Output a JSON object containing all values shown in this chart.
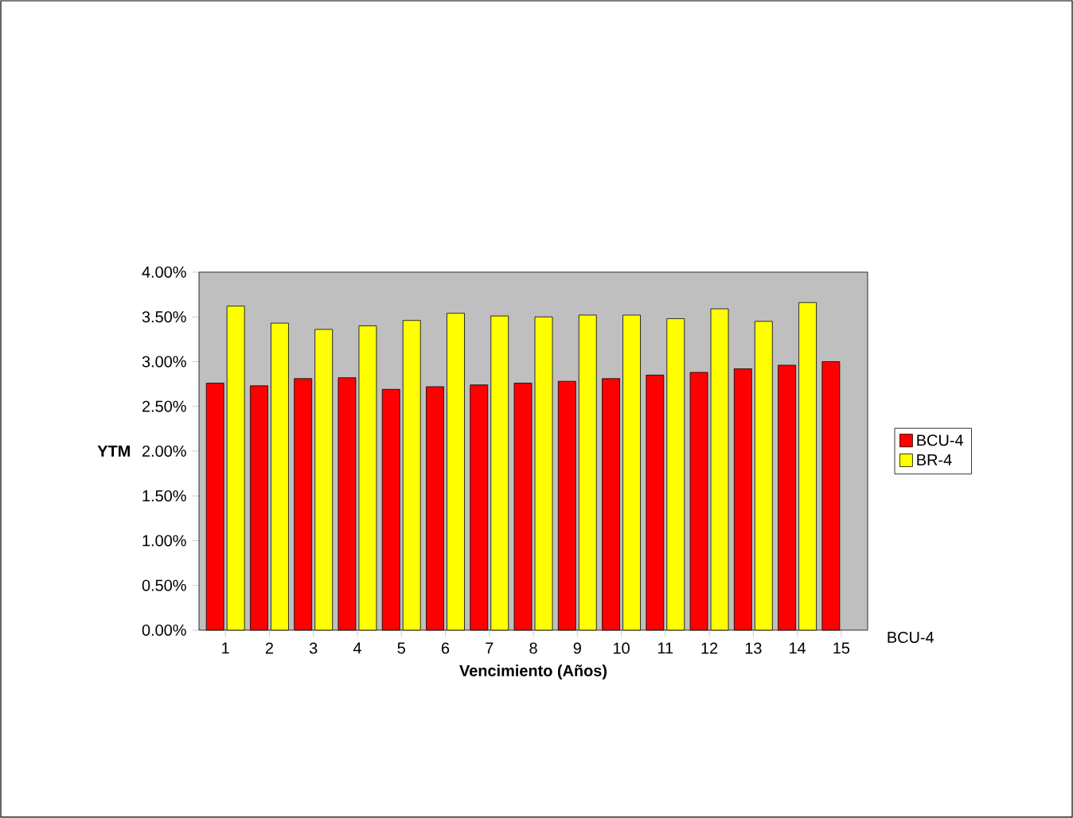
{
  "chart_data": {
    "type": "bar",
    "categories": [
      "1",
      "2",
      "3",
      "4",
      "5",
      "6",
      "7",
      "8",
      "9",
      "10",
      "11",
      "12",
      "13",
      "14",
      "15"
    ],
    "series": [
      {
        "name": "BCU-4",
        "color": "#ff0000",
        "values": [
          2.76,
          2.73,
          2.81,
          2.82,
          2.69,
          2.72,
          2.74,
          2.76,
          2.78,
          2.81,
          2.85,
          2.88,
          2.92,
          2.96,
          3.0
        ]
      },
      {
        "name": "BR-4",
        "color": "#ffff00",
        "values": [
          3.62,
          3.43,
          3.36,
          3.4,
          3.46,
          3.54,
          3.51,
          3.5,
          3.52,
          3.52,
          3.48,
          3.59,
          3.45,
          3.66,
          null
        ]
      }
    ],
    "xlabel": "Vencimiento (Años)",
    "ylabel": "YTM",
    "ylim": [
      0,
      4
    ],
    "yticks": [
      {
        "value": 0,
        "label": "0.00%"
      },
      {
        "value": 0.5,
        "label": "0.50%"
      },
      {
        "value": 1,
        "label": "1.00%"
      },
      {
        "value": 1.5,
        "label": "1.50%"
      },
      {
        "value": 2,
        "label": "2.00%"
      },
      {
        "value": 2.5,
        "label": "2.50%"
      },
      {
        "value": 3,
        "label": "3.00%"
      },
      {
        "value": 3.5,
        "label": "3.50%"
      },
      {
        "value": 4,
        "label": "4.00%"
      }
    ],
    "annotations": [
      "BCU-4"
    ],
    "legend": "right",
    "grid": false
  }
}
